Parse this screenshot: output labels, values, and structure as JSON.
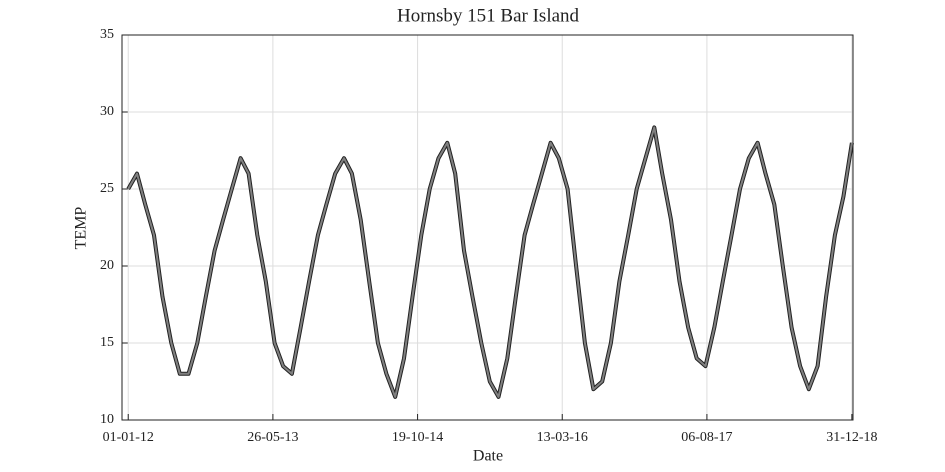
{
  "chart_data": {
    "type": "line",
    "title": "Hornsby 151 Bar Island",
    "xlabel": "Date",
    "ylabel": "TEMP",
    "x": [
      "2012-01-01",
      "2012-02-01",
      "2012-03-01",
      "2012-04-01",
      "2012-05-01",
      "2012-06-01",
      "2012-07-01",
      "2012-08-01",
      "2012-09-01",
      "2012-10-01",
      "2012-11-01",
      "2012-12-01",
      "2013-01-01",
      "2013-02-01",
      "2013-03-01",
      "2013-04-01",
      "2013-05-01",
      "2013-06-01",
      "2013-07-01",
      "2013-08-01",
      "2013-09-01",
      "2013-10-01",
      "2013-11-01",
      "2013-12-01",
      "2014-01-01",
      "2014-02-01",
      "2014-03-01",
      "2014-04-01",
      "2014-05-01",
      "2014-06-01",
      "2014-07-01",
      "2014-08-01",
      "2014-09-01",
      "2014-10-01",
      "2014-11-01",
      "2014-12-01",
      "2015-01-01",
      "2015-02-01",
      "2015-03-01",
      "2015-04-01",
      "2015-05-01",
      "2015-06-01",
      "2015-07-01",
      "2015-08-01",
      "2015-09-01",
      "2015-10-01",
      "2015-11-01",
      "2015-12-01",
      "2016-01-01",
      "2016-02-01",
      "2016-03-01",
      "2016-04-01",
      "2016-05-01",
      "2016-06-01",
      "2016-07-01",
      "2016-08-01",
      "2016-09-01",
      "2016-10-01",
      "2016-11-01",
      "2016-12-01",
      "2017-01-01",
      "2017-02-01",
      "2017-03-01",
      "2017-04-01",
      "2017-05-01",
      "2017-06-01",
      "2017-07-01",
      "2017-08-01",
      "2017-09-01",
      "2017-10-01",
      "2017-11-01",
      "2017-12-01",
      "2018-01-01",
      "2018-02-01",
      "2018-03-01",
      "2018-04-01",
      "2018-05-01",
      "2018-06-01",
      "2018-07-01",
      "2018-08-01",
      "2018-09-01",
      "2018-10-01",
      "2018-11-01",
      "2018-12-01",
      "2018-12-31"
    ],
    "series": [
      {
        "name": "TEMP",
        "color": "#808080",
        "values": [
          25,
          26,
          24,
          22,
          18,
          15,
          13,
          13,
          15,
          18,
          21,
          23,
          25,
          27,
          26,
          22,
          19,
          15,
          13.5,
          13,
          16,
          19,
          22,
          24,
          26,
          27,
          26,
          23,
          19,
          15,
          13,
          11.5,
          14,
          18,
          22,
          25,
          27,
          28,
          26,
          21,
          18,
          15,
          12.5,
          11.5,
          14,
          18,
          22,
          24,
          26,
          28,
          27,
          25,
          20,
          15,
          12,
          12.5,
          15,
          19,
          22,
          25,
          27,
          29,
          26,
          23,
          19,
          16,
          14,
          13.5,
          16,
          19,
          22,
          25,
          27,
          28,
          26,
          24,
          20,
          16,
          13.5,
          12,
          13.5,
          18,
          22,
          24.5,
          28
        ]
      }
    ],
    "xlim": [
      "2011-12-10",
      "2019-01-04"
    ],
    "xticks": [
      {
        "value": "2012-01-01",
        "label": "01-01-12"
      },
      {
        "value": "2013-05-26",
        "label": "26-05-13"
      },
      {
        "value": "2014-10-19",
        "label": "19-10-14"
      },
      {
        "value": "2016-03-13",
        "label": "13-03-16"
      },
      {
        "value": "2017-08-06",
        "label": "06-08-17"
      },
      {
        "value": "2018-12-31",
        "label": "31-12-18"
      }
    ],
    "ylim": [
      10,
      35
    ],
    "yticks": [
      10,
      15,
      20,
      25,
      30,
      35
    ],
    "grid": true
  }
}
